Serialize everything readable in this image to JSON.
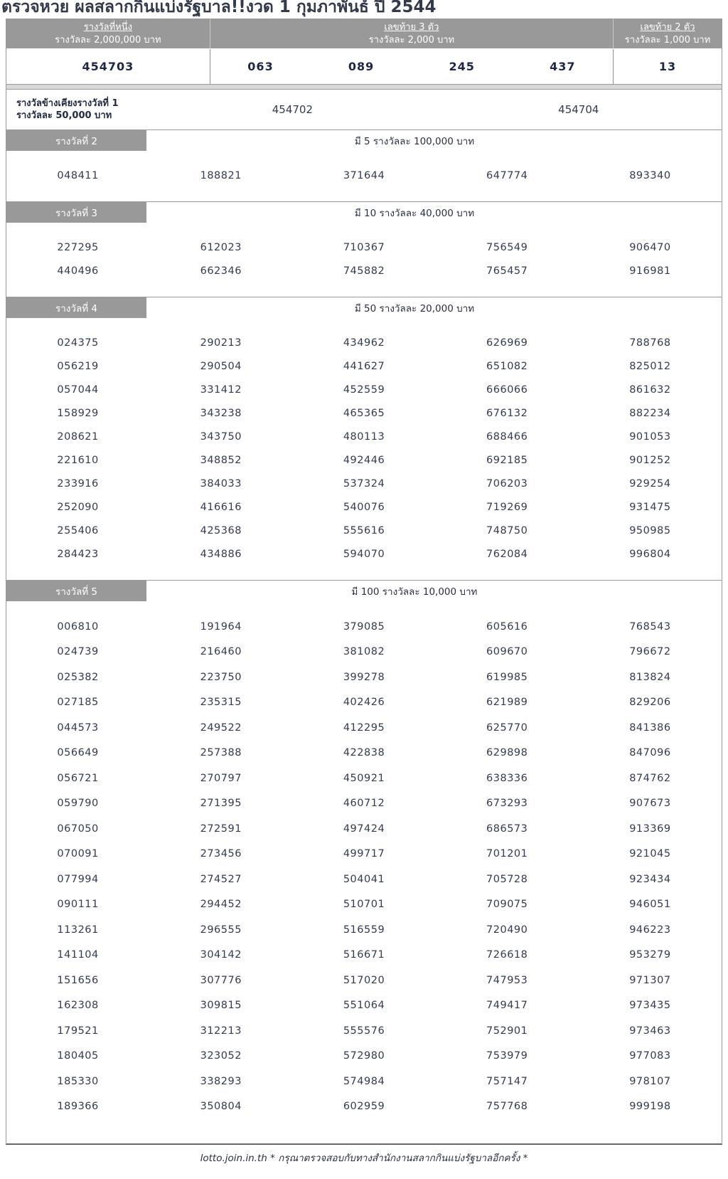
{
  "title": "ตรวจหวย ผลสลากกินแบ่งรัฐบาล!!งวด 1 กุมภาพันธ์ ปี 2544",
  "colors": {
    "band_gray": "#999999",
    "band_text": "#ffffff",
    "number_text": "#333b52",
    "bold_number_text": "#1f2747",
    "separator_gray": "#d8d8d8"
  },
  "header": {
    "first_prize": {
      "label": "รางวัลที่หนึ่ง",
      "sub": "รางวัลละ 2,000,000 บาท",
      "number": "454703"
    },
    "three_digit": {
      "label": "เลขท้าย 3 ตัว",
      "sub": "รางวัลละ 2,000 บาท",
      "numbers": [
        "063",
        "089",
        "245",
        "437"
      ]
    },
    "two_digit": {
      "label": "เลขท้าย 2 ตัว",
      "sub": "รางวัลละ 1,000 บาท",
      "number": "13"
    }
  },
  "side_prize": {
    "label_line1": "รางวัลข้างเคียงรางวัลที่ 1",
    "label_line2": "รางวัลละ 50,000 บาท",
    "numbers": [
      "454702",
      "454704"
    ]
  },
  "sections": [
    {
      "label": "รางวัลที่ 2",
      "info": "มี 5 รางวัลละ 100,000 บาท",
      "numbers": [
        "048411",
        "188821",
        "371644",
        "647774",
        "893340"
      ]
    },
    {
      "label": "รางวัลที่ 3",
      "info": "มี 10 รางวัลละ 40,000 บาท",
      "numbers": [
        "227295",
        "612023",
        "710367",
        "756549",
        "906470",
        "440496",
        "662346",
        "745882",
        "765457",
        "916981"
      ]
    },
    {
      "label": "รางวัลที่ 4",
      "info": "มี 50 รางวัลละ 20,000 บาท",
      "numbers": [
        "024375",
        "290213",
        "434962",
        "626969",
        "788768",
        "056219",
        "290504",
        "441627",
        "651082",
        "825012",
        "057044",
        "331412",
        "452559",
        "666066",
        "861632",
        "158929",
        "343238",
        "465365",
        "676132",
        "882234",
        "208621",
        "343750",
        "480113",
        "688466",
        "901053",
        "221610",
        "348852",
        "492446",
        "692185",
        "901252",
        "233916",
        "384033",
        "537324",
        "706203",
        "929254",
        "252090",
        "416616",
        "540076",
        "719269",
        "931475",
        "255406",
        "425368",
        "555616",
        "748750",
        "950985",
        "284423",
        "434886",
        "594070",
        "762084",
        "996804"
      ]
    },
    {
      "label": "รางวัลที่ 5",
      "info": "มี 100 รางวัลละ 10,000 บาท",
      "numbers": [
        "006810",
        "191964",
        "379085",
        "605616",
        "768543",
        "024739",
        "216460",
        "381082",
        "609670",
        "796672",
        "025382",
        "223750",
        "399278",
        "619985",
        "813824",
        "027185",
        "235315",
        "402426",
        "621989",
        "829206",
        "044573",
        "249522",
        "412295",
        "625770",
        "841386",
        "056649",
        "257388",
        "422838",
        "629898",
        "847096",
        "056721",
        "270797",
        "450921",
        "638336",
        "874762",
        "059790",
        "271395",
        "460712",
        "673293",
        "907673",
        "067050",
        "272591",
        "497424",
        "686573",
        "913369",
        "070091",
        "273456",
        "499717",
        "701201",
        "921045",
        "077994",
        "274527",
        "504041",
        "705728",
        "923434",
        "090111",
        "294452",
        "510701",
        "709075",
        "946051",
        "113261",
        "296555",
        "516559",
        "720490",
        "946223",
        "141104",
        "304142",
        "516671",
        "726618",
        "953279",
        "151656",
        "307776",
        "517020",
        "747953",
        "971307",
        "162308",
        "309815",
        "551064",
        "749417",
        "973435",
        "179521",
        "312213",
        "555576",
        "752901",
        "973463",
        "180405",
        "323052",
        "572980",
        "753979",
        "977083",
        "185330",
        "338293",
        "574984",
        "757147",
        "978107",
        "189366",
        "350804",
        "602959",
        "757768",
        "999198"
      ]
    }
  ],
  "footer": "lotto.join.in.th * กรุณาตรวจสอบกับทางสำนักงานสลากกินแบ่งรัฐบาลอีกครั้ง *"
}
